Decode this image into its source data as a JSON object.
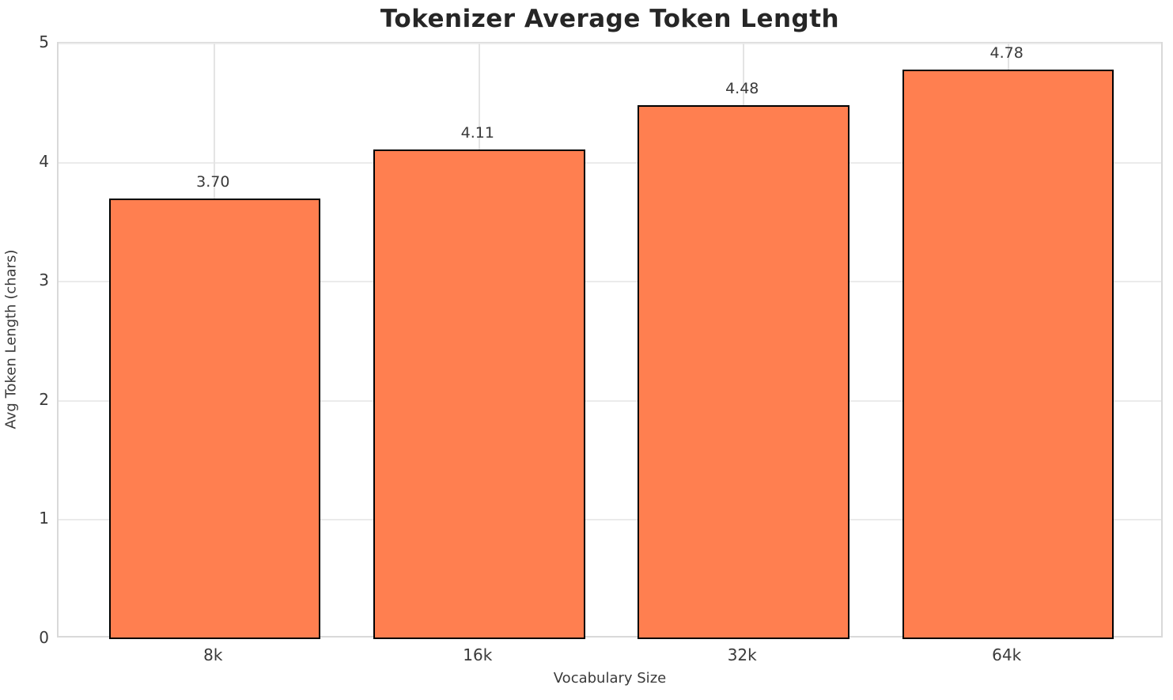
{
  "chart_data": {
    "type": "bar",
    "title": "Tokenizer Average Token Length",
    "xlabel": "Vocabulary Size",
    "ylabel": "Avg Token Length (chars)",
    "categories": [
      "8k",
      "16k",
      "32k",
      "64k"
    ],
    "values": [
      3.7,
      4.11,
      4.48,
      4.78
    ],
    "bar_labels": [
      "3.70",
      "4.11",
      "4.48",
      "4.78"
    ],
    "ylim": [
      0,
      5
    ],
    "yticks": [
      0,
      1,
      2,
      3,
      4,
      5
    ],
    "grid": true,
    "legend_position": "none",
    "colors": {
      "bar_fill": "#FF7F50",
      "bar_edge": "#000000",
      "grid_h": "#ebebeb",
      "grid_v": "#e4e4e4",
      "spine": "#d9d9d9",
      "title_text": "#262626",
      "tick_text": "#3a3a3a"
    }
  }
}
